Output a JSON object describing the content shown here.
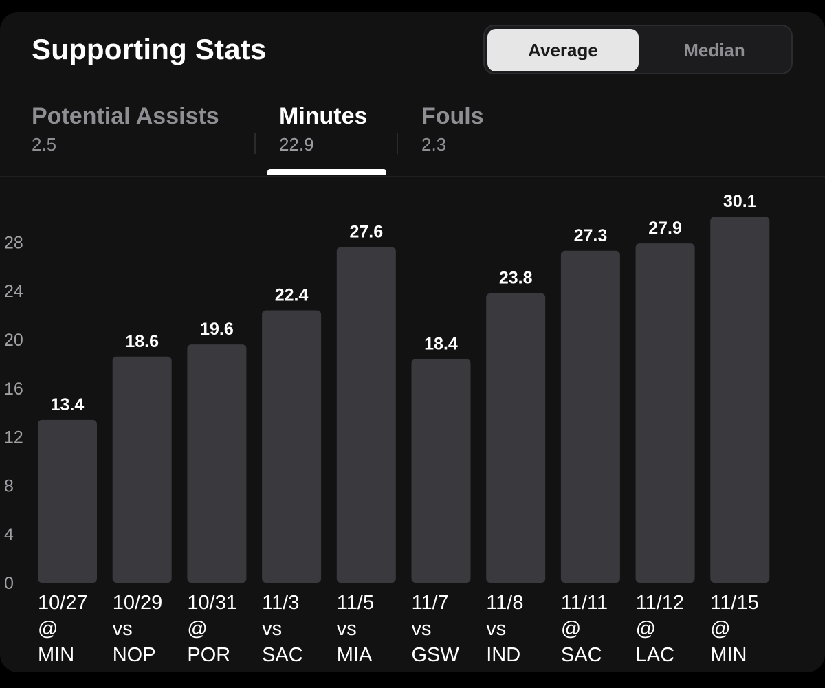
{
  "header": {
    "title": "Supporting Stats",
    "toggle": {
      "active": "Average",
      "inactive": "Median"
    }
  },
  "tabs": [
    {
      "label": "Potential Assists",
      "value": "2.5",
      "active": false
    },
    {
      "label": "Minutes",
      "value": "22.9",
      "active": true
    },
    {
      "label": "Fouls",
      "value": "2.3",
      "active": false
    }
  ],
  "colors": {
    "bar": "#3a393e",
    "background": "#121212",
    "accent": "#ffffff"
  },
  "chart_data": {
    "type": "bar",
    "categories": [
      [
        "10/27",
        "@",
        "MIN"
      ],
      [
        "10/29",
        "vs",
        "NOP"
      ],
      [
        "10/31",
        "@",
        "POR"
      ],
      [
        "11/3",
        "vs",
        "SAC"
      ],
      [
        "11/5",
        "vs",
        "MIA"
      ],
      [
        "11/7",
        "vs",
        "GSW"
      ],
      [
        "11/8",
        "vs",
        "IND"
      ],
      [
        "11/11",
        "@",
        "SAC"
      ],
      [
        "11/12",
        "@",
        "LAC"
      ],
      [
        "11/15",
        "@",
        "MIN"
      ]
    ],
    "values": [
      13.4,
      18.6,
      19.6,
      22.4,
      27.6,
      18.4,
      23.8,
      27.3,
      27.9,
      30.1
    ],
    "value_labels": [
      "13.4",
      "18.6",
      "19.6",
      "22.4",
      "27.6",
      "18.4",
      "23.8",
      "27.3",
      "27.9",
      "30.1"
    ],
    "yticks": [
      0,
      4,
      8,
      12,
      16,
      20,
      24,
      28
    ],
    "ylim": [
      0,
      28
    ],
    "grid": false,
    "legend": "none"
  }
}
